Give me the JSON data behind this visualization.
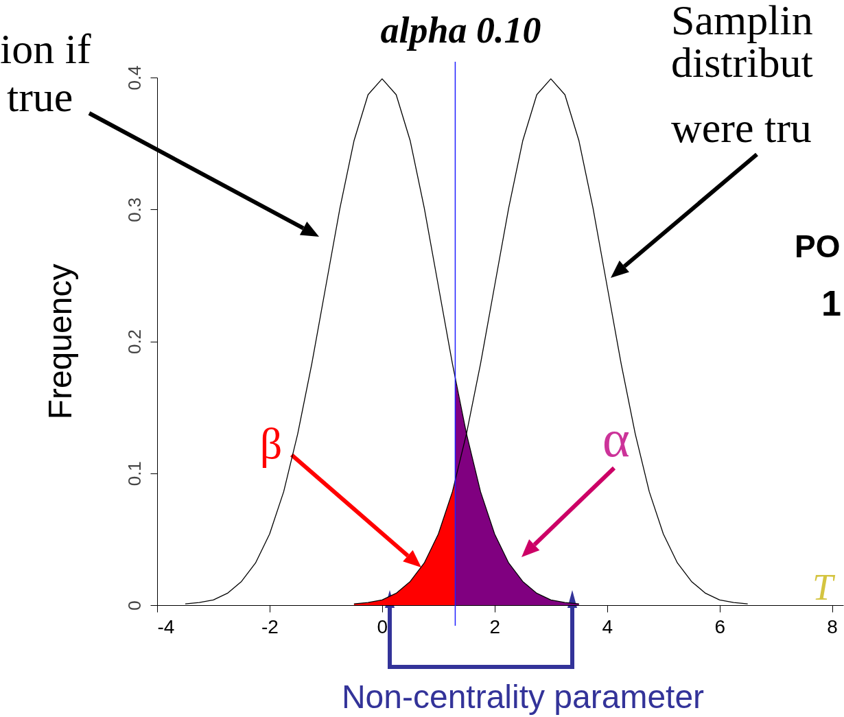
{
  "chart_data": {
    "type": "line",
    "ylabel": "Frequency",
    "xlim": [
      -4,
      8.2
    ],
    "xticks": [
      -4,
      -2,
      0,
      2,
      4,
      6,
      8
    ],
    "ylim": [
      0,
      0.4
    ],
    "yticks": [
      0,
      0.1,
      0.2,
      0.3,
      0.4
    ],
    "series": [
      {
        "type": "area",
        "color": "#ff0000",
        "x": [
          -0.5,
          -0.25,
          0,
          0.25,
          0.5,
          0.75,
          1,
          1.25,
          1.3
        ],
        "values": [
          0.001,
          0.002,
          0.004,
          0.009,
          0.018,
          0.032,
          0.054,
          0.086,
          0.094
        ]
      },
      {
        "type": "area",
        "color": "#800080",
        "x": [
          1.3,
          1.5,
          1.75,
          2,
          2.25,
          2.5,
          2.75,
          3,
          3.25,
          3.5
        ],
        "values": [
          0.171,
          0.13,
          0.086,
          0.054,
          0.032,
          0.018,
          0.009,
          0.004,
          0.002,
          0.001
        ]
      },
      {
        "color": "#000000",
        "x": [
          -3.5,
          -3.25,
          -3,
          -2.75,
          -2.5,
          -2.25,
          -2,
          -1.75,
          -1.5,
          -1.25,
          -1,
          -0.75,
          -0.5,
          -0.25,
          0,
          0.25,
          0.5,
          0.75,
          1,
          1.25,
          1.5,
          1.75,
          2,
          2.25,
          2.5,
          2.75,
          3,
          3.25,
          3.5
        ],
        "values": [
          0.001,
          0.002,
          0.004,
          0.009,
          0.018,
          0.032,
          0.054,
          0.086,
          0.13,
          0.183,
          0.242,
          0.301,
          0.352,
          0.387,
          0.399,
          0.387,
          0.352,
          0.301,
          0.242,
          0.183,
          0.13,
          0.086,
          0.054,
          0.032,
          0.018,
          0.009,
          0.004,
          0.002,
          0.001
        ]
      },
      {
        "color": "#000000",
        "x": [
          -0.5,
          -0.25,
          0,
          0.25,
          0.5,
          0.75,
          1,
          1.25,
          1.5,
          1.75,
          2,
          2.25,
          2.5,
          2.75,
          3,
          3.25,
          3.5,
          3.75,
          4,
          4.25,
          4.5,
          4.75,
          5,
          5.25,
          5.5,
          5.75,
          6,
          6.25,
          6.5
        ],
        "values": [
          0.001,
          0.002,
          0.004,
          0.009,
          0.018,
          0.032,
          0.054,
          0.086,
          0.13,
          0.183,
          0.242,
          0.301,
          0.352,
          0.387,
          0.399,
          0.387,
          0.352,
          0.301,
          0.242,
          0.183,
          0.13,
          0.086,
          0.054,
          0.032,
          0.018,
          0.009,
          0.004,
          0.002,
          0.001
        ]
      }
    ],
    "ref_lines": [
      {
        "axis": "x",
        "value": 1.3,
        "label": "alpha 0.10",
        "color": "#2020ff"
      }
    ],
    "annotations": [
      "ion if",
      "true",
      "Samplin",
      "distribut",
      "were tru",
      "PO",
      "1",
      "T",
      "β",
      "α",
      "Non-centrality parameter"
    ]
  }
}
